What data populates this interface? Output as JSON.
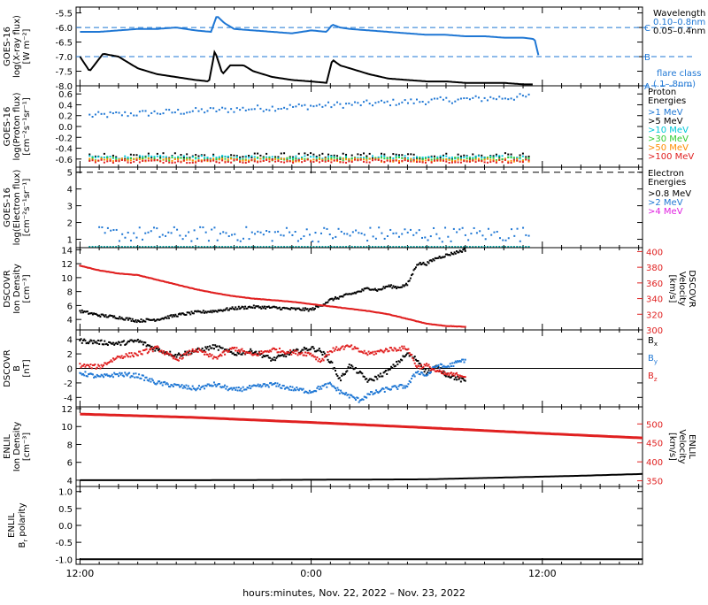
{
  "xaxis": {
    "tick_labels": [
      "12:00",
      "0:00",
      "12:00"
    ],
    "title": "hours:minutes, Nov. 22, 2022 – Nov. 23, 2022"
  },
  "chart_data": [
    {
      "id": "xray",
      "type": "line",
      "ylabel": [
        "GOES-16",
        "log(X-ray flux)",
        "[W m⁻²]"
      ],
      "yticks": [
        "-5.5",
        "-6.0",
        "-6.5",
        "-7.0",
        "-7.5",
        "-8.0"
      ],
      "ylim": [
        -8.0,
        -5.3
      ],
      "xlim_hours": [
        -12.2,
        17.2
      ],
      "legend_title": "Wavelength",
      "legend": [
        {
          "name": "0.10–0.8nm",
          "color": "#1f77d4"
        },
        {
          "name": "0.05–0.4nm",
          "color": "#000000"
        }
      ],
      "flare_class": {
        "title": [
          "flare class",
          "(.1–.8nm)"
        ],
        "levels": [
          {
            "label": "C",
            "value": -6.0
          },
          {
            "label": "B",
            "value": -7.0
          },
          {
            "label": "A",
            "value": -8.0
          }
        ]
      },
      "series": [
        {
          "name": "0.10–0.8nm",
          "color": "#1f77d4",
          "x": [
            -12.0,
            -11.0,
            -10.0,
            -9.0,
            -8.0,
            -7.0,
            -6.0,
            -5.2,
            -4.9,
            -4.5,
            -4.0,
            -3.0,
            -2.0,
            -1.0,
            0.0,
            0.8,
            1.1,
            1.5,
            2.0,
            3.0,
            4.0,
            5.0,
            6.0,
            7.0,
            8.0,
            9.0,
            10.0,
            11.0,
            11.6,
            11.8
          ],
          "y": [
            -6.15,
            -6.15,
            -6.1,
            -6.05,
            -6.05,
            -6.0,
            -6.1,
            -6.15,
            -5.6,
            -5.85,
            -6.05,
            -6.1,
            -6.15,
            -6.2,
            -6.1,
            -6.15,
            -5.9,
            -6.0,
            -6.05,
            -6.1,
            -6.15,
            -6.2,
            -6.25,
            -6.25,
            -6.3,
            -6.3,
            -6.35,
            -6.35,
            -6.4,
            -6.95
          ]
        },
        {
          "name": "0.05–0.4nm",
          "color": "#000000",
          "x": [
            -12.0,
            -11.5,
            -10.8,
            -10.0,
            -9.0,
            -8.0,
            -7.0,
            -6.0,
            -5.3,
            -5.0,
            -4.6,
            -4.2,
            -3.5,
            -3.0,
            -2.0,
            -1.0,
            0.0,
            0.8,
            1.1,
            1.5,
            2.0,
            3.0,
            4.0,
            5.0,
            6.0,
            7.0,
            8.0,
            9.0,
            10.0,
            11.0,
            11.5
          ],
          "y": [
            -7.0,
            -7.5,
            -6.9,
            -7.0,
            -7.4,
            -7.6,
            -7.7,
            -7.8,
            -7.85,
            -6.8,
            -7.6,
            -7.3,
            -7.3,
            -7.5,
            -7.7,
            -7.8,
            -7.85,
            -7.9,
            -7.1,
            -7.3,
            -7.4,
            -7.6,
            -7.75,
            -7.8,
            -7.85,
            -7.85,
            -7.9,
            -7.9,
            -7.9,
            -7.95,
            -7.95
          ]
        }
      ]
    },
    {
      "id": "proton",
      "type": "scatter",
      "ylabel": [
        "GOES-16",
        "log(Proton flux)",
        "[cm⁻²s⁻¹sr⁻¹]"
      ],
      "yticks": [
        "0.6",
        "0.4",
        "0.2",
        "0.0",
        "-0.2",
        "-0.4",
        "-0.6"
      ],
      "ylim": [
        -0.75,
        0.75
      ],
      "xlim_hours": [
        -12.2,
        17.2
      ],
      "legend_title": [
        "Proton",
        "Energies"
      ],
      "legend": [
        {
          "name": ">1 MeV",
          "color": "#1f77d4"
        },
        {
          "name": ">5 MeV",
          "color": "#000000"
        },
        {
          "name": ">10 MeV",
          "color": "#00c8d8"
        },
        {
          "name": ">30 MeV",
          "color": "#33cc33"
        },
        {
          "name": ">50 MeV",
          "color": "#ff8c00"
        },
        {
          "name": ">100 MeV",
          "color": "#e02020"
        }
      ],
      "series": [
        {
          "name": ">1 MeV",
          "color": "#1f77d4",
          "x_range": [
            -11.5,
            11.3
          ],
          "y_start": 0.2,
          "y_end": 0.55,
          "noise": 0.06
        },
        {
          "name": ">5 MeV",
          "color": "#000000",
          "x_range": [
            -11.5,
            11.3
          ],
          "y_start": -0.55,
          "y_end": -0.55,
          "noise": 0.06
        },
        {
          "name": ">10 MeV",
          "color": "#00c8d8",
          "x_range": [
            -11.5,
            11.3
          ],
          "y_start": -0.57,
          "y_end": -0.57,
          "noise": 0.03
        },
        {
          "name": ">30 MeV",
          "color": "#33cc33",
          "x_range": [
            -11.5,
            11.3
          ],
          "y_start": -0.6,
          "y_end": -0.6,
          "noise": 0.03
        },
        {
          "name": ">50 MeV",
          "color": "#ff8c00",
          "x_range": [
            -11.5,
            11.3
          ],
          "y_start": -0.62,
          "y_end": -0.62,
          "noise": 0.03
        },
        {
          "name": ">100 MeV",
          "color": "#e02020",
          "x_range": [
            -11.5,
            11.3
          ],
          "y_start": -0.64,
          "y_end": -0.64,
          "noise": 0.03
        }
      ]
    },
    {
      "id": "electron",
      "type": "scatter",
      "ylabel": [
        "GOES-16",
        "log(Electron flux)",
        "[cm⁻²s⁻¹sr⁻¹]"
      ],
      "yticks": [
        "5",
        "4",
        "3",
        "2",
        "1"
      ],
      "ylim": [
        0.5,
        5.3
      ],
      "xlim_hours": [
        -12.2,
        17.2
      ],
      "legend_title": [
        "Electron",
        "Energies"
      ],
      "legend": [
        {
          "name": ">0.8 MeV",
          "color": "#000000"
        },
        {
          "name": ">2 MeV",
          "color": "#1f77d4"
        },
        {
          "name": ">4 MeV",
          "color": "#e020e0"
        }
      ],
      "threshold": 5.0,
      "series": [
        {
          "name": ">2 MeV",
          "color": "#1f77d4",
          "x_range": [
            -11.0,
            11.3
          ],
          "y_start": 1.3,
          "y_end": 1.3,
          "noise": 0.45
        },
        {
          "name": ">0.8 MeV",
          "color": "#00a0a0",
          "x_range": [
            -11.5,
            11.3
          ],
          "y_start": 0.55,
          "y_end": 0.55,
          "noise": 0.0
        }
      ]
    },
    {
      "id": "dscovr_plasma",
      "type": "scatter",
      "ylabel": [
        "DSCOVR",
        "Ion Density",
        "[cm⁻³]"
      ],
      "yticks": [
        "14",
        "12",
        "10",
        "8",
        "6",
        "4"
      ],
      "ylim": [
        2.5,
        14.3
      ],
      "y2label": [
        "DSCOVR",
        "Velocity",
        "[km/s]"
      ],
      "y2ticks": [
        "400",
        "380",
        "360",
        "340",
        "320",
        "300"
      ],
      "y2lim": [
        300,
        405
      ],
      "xlim_hours": [
        -12.2,
        17.2
      ],
      "series": [
        {
          "name": "Density",
          "color": "#000000",
          "axis": "left",
          "x": [
            -12.0,
            -11.0,
            -10.0,
            -9.0,
            -8.0,
            -7.0,
            -6.0,
            -5.0,
            -4.0,
            -3.0,
            -2.0,
            -1.0,
            0.0,
            0.5,
            1.0,
            1.5,
            2.0,
            2.5,
            3.0,
            3.5,
            4.0,
            4.5,
            5.0,
            5.5,
            6.0,
            6.5,
            7.0,
            7.5,
            8.0
          ],
          "y": [
            5.2,
            4.6,
            4.3,
            3.8,
            4.0,
            4.6,
            5.0,
            5.2,
            5.6,
            5.8,
            5.7,
            5.5,
            5.4,
            6.0,
            6.8,
            7.2,
            7.6,
            8.0,
            8.5,
            8.2,
            8.8,
            8.6,
            9.0,
            12.0,
            12.0,
            12.8,
            13.2,
            13.6,
            14.0
          ]
        },
        {
          "name": "Velocity",
          "color": "#e02020",
          "axis": "right",
          "x": [
            -12.0,
            -11.0,
            -10.0,
            -9.0,
            -8.0,
            -7.0,
            -6.0,
            -5.0,
            -4.0,
            -3.0,
            -2.0,
            -1.0,
            0.0,
            1.0,
            2.0,
            3.0,
            4.0,
            5.0,
            6.0,
            7.0,
            8.0
          ],
          "y": [
            382,
            376,
            372,
            370,
            364,
            358,
            352,
            347,
            343,
            340,
            338,
            336,
            333,
            330,
            327,
            324,
            320,
            314,
            308,
            305,
            304
          ]
        }
      ]
    },
    {
      "id": "dscovr_mag",
      "type": "scatter",
      "ylabel": [
        "DSCOVR",
        "B",
        "[nT]"
      ],
      "yticks": [
        "4",
        "2",
        "0",
        "-2",
        "-4"
      ],
      "ylim": [
        -5.3,
        5.3
      ],
      "xlim_hours": [
        -12.2,
        17.2
      ],
      "zero_line": true,
      "legend": [
        {
          "name": "Bx",
          "base": "B",
          "sub": "x",
          "color": "#000000"
        },
        {
          "name": "By",
          "base": "B",
          "sub": "y",
          "color": "#1f77d4"
        },
        {
          "name": "Bz",
          "base": "B",
          "sub": "z",
          "color": "#e02020"
        }
      ],
      "series": [
        {
          "name": "Bx",
          "color": "#000000",
          "x": [
            -12.0,
            -11.0,
            -10.0,
            -9.0,
            -8.0,
            -7.0,
            -6.0,
            -5.0,
            -4.0,
            -3.0,
            -2.0,
            -1.0,
            0.0,
            0.5,
            1.0,
            1.5,
            2.0,
            2.5,
            3.0,
            4.0,
            5.0,
            5.5,
            6.0,
            6.5,
            7.0,
            8.0
          ],
          "y": [
            3.8,
            3.6,
            3.4,
            3.8,
            2.6,
            1.8,
            2.4,
            3.0,
            2.0,
            2.4,
            1.2,
            2.2,
            2.8,
            2.4,
            1.0,
            -1.6,
            0.4,
            -0.6,
            -1.8,
            -0.4,
            2.0,
            1.2,
            -0.6,
            0.2,
            -0.8,
            -1.8
          ]
        },
        {
          "name": "By",
          "color": "#1f77d4",
          "x": [
            -12.0,
            -11.0,
            -10.0,
            -9.0,
            -8.0,
            -7.0,
            -6.0,
            -5.0,
            -4.0,
            -3.0,
            -2.0,
            -1.0,
            0.0,
            0.5,
            1.0,
            1.5,
            2.0,
            2.5,
            3.0,
            4.0,
            5.0,
            5.5,
            6.0,
            6.5,
            7.0,
            8.0
          ],
          "y": [
            -0.6,
            -1.2,
            -0.8,
            -1.0,
            -2.0,
            -2.4,
            -2.8,
            -2.2,
            -3.0,
            -2.6,
            -2.2,
            -2.8,
            -3.2,
            -2.6,
            -2.2,
            -3.2,
            -3.8,
            -4.4,
            -3.6,
            -2.8,
            -2.4,
            -0.4,
            -1.0,
            0.4,
            0.2,
            1.2
          ]
        },
        {
          "name": "Bz",
          "color": "#e02020",
          "x": [
            -12.0,
            -11.0,
            -10.0,
            -9.0,
            -8.0,
            -7.0,
            -6.0,
            -5.0,
            -4.0,
            -3.0,
            -2.0,
            -1.0,
            0.0,
            0.5,
            1.0,
            1.5,
            2.0,
            2.5,
            3.0,
            4.0,
            5.0,
            5.5,
            6.0,
            6.5,
            7.0,
            8.0
          ],
          "y": [
            0.4,
            0.2,
            1.6,
            2.0,
            2.8,
            1.2,
            2.6,
            1.4,
            2.8,
            1.8,
            2.6,
            2.2,
            2.0,
            1.0,
            2.4,
            2.8,
            3.0,
            2.4,
            2.0,
            2.6,
            2.8,
            0.2,
            0.4,
            -0.4,
            -0.8,
            -1.0
          ]
        }
      ]
    },
    {
      "id": "enlil_plasma",
      "type": "line",
      "ylabel": [
        "ENLIL",
        "Ion Density",
        "[cm⁻³]"
      ],
      "yticks": [
        "12",
        "10",
        "8",
        "6",
        "4"
      ],
      "ylim": [
        3.3,
        12.2
      ],
      "y2label": [
        "ENLIL",
        "Velocity",
        "[km/s]"
      ],
      "y2ticks": [
        "500",
        "450",
        "400",
        "350"
      ],
      "y2lim": [
        335,
        545
      ],
      "xlim_hours": [
        -12.2,
        17.2
      ],
      "series": [
        {
          "name": "Density",
          "color": "#000000",
          "axis": "left",
          "x": [
            -12.0,
            -6.0,
            0.0,
            6.0,
            10.0,
            14.0,
            17.2
          ],
          "y": [
            4.0,
            4.0,
            4.05,
            4.1,
            4.3,
            4.5,
            4.7
          ]
        },
        {
          "name": "Velocity",
          "color": "#e02020",
          "axis": "right",
          "x": [
            -12.0,
            -6.0,
            0.0,
            6.0,
            12.0,
            17.2
          ],
          "y": [
            526,
            517,
            504,
            490,
            475,
            463
          ]
        }
      ]
    },
    {
      "id": "enlil_polarity",
      "type": "line",
      "ylabel": [
        "ENLIL",
        "Br polarity"
      ],
      "ylabel_parts": {
        "base": "B",
        "sub": "r",
        "suffix": " polarity"
      },
      "yticks": [
        "1.0",
        "0.5",
        "0.0",
        "-0.5",
        "-1.0"
      ],
      "ylim": [
        -1.15,
        1.15
      ],
      "xlim_hours": [
        -12.2,
        17.2
      ],
      "series": [
        {
          "name": "Polarity",
          "color": "#000000",
          "axis": "left",
          "x": [
            -12.0,
            17.2
          ],
          "y": [
            -1.0,
            -1.0
          ]
        }
      ]
    }
  ]
}
